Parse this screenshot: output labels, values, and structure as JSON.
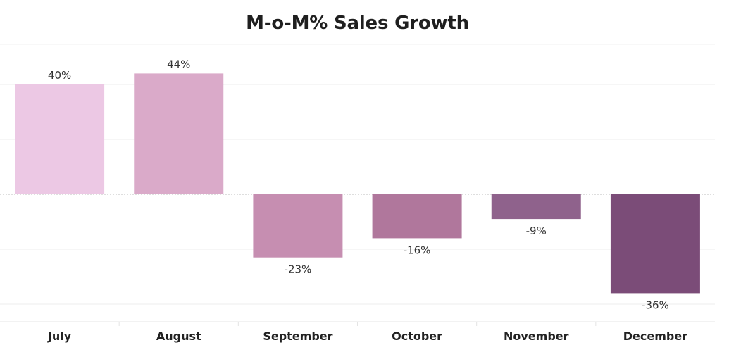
{
  "chart_data": {
    "type": "bar",
    "title": "M-o-M% Sales Growth",
    "xlabel": "",
    "ylabel": "",
    "unit": "%",
    "categories": [
      "July",
      "August",
      "September",
      "October",
      "November",
      "December"
    ],
    "values": [
      40,
      44,
      -23,
      -16,
      -9,
      -36
    ],
    "value_labels": [
      "40%",
      "44%",
      "-23%",
      "-16%",
      "-9%",
      "-36%"
    ],
    "ylim": [
      -40,
      50
    ],
    "gridlines": [
      40,
      20,
      -20,
      -40
    ],
    "grid": true,
    "legend": "none",
    "colors": [
      "#ecc8e4",
      "#daaac9",
      "#c68eb1",
      "#b0779c",
      "#8f628c",
      "#7b4c78"
    ]
  }
}
